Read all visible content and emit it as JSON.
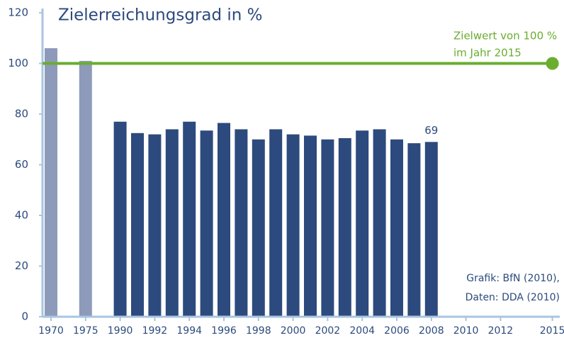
{
  "chart_data": {
    "type": "bar",
    "title": "Zielerreichungsgrad in %",
    "categories": [
      "1970",
      null,
      "1975",
      null,
      "1990",
      null,
      "1992",
      null,
      "1994",
      null,
      "1996",
      null,
      "1998",
      null,
      "2000",
      null,
      "2002",
      null,
      "2004",
      null,
      "2006",
      null,
      "2008",
      null,
      "2010",
      null,
      "2012",
      null,
      null,
      "2015"
    ],
    "values": [
      106,
      null,
      101,
      null,
      77,
      72.5,
      72,
      74,
      77,
      73.5,
      76.5,
      74,
      70,
      74,
      72,
      71.5,
      70,
      70.5,
      73.5,
      74,
      70,
      68.5,
      69,
      null,
      null,
      null,
      null,
      null,
      null,
      null
    ],
    "value_labels": [
      null,
      null,
      null,
      null,
      null,
      null,
      null,
      null,
      null,
      null,
      null,
      null,
      null,
      null,
      null,
      null,
      null,
      null,
      null,
      null,
      null,
      null,
      "69",
      null,
      null,
      null,
      null,
      null,
      null,
      null
    ],
    "colors": [
      "#8d9aba",
      null,
      "#8d9aba",
      null,
      "#2c4a7d",
      "#2c4a7d",
      "#2c4a7d",
      "#2c4a7d",
      "#2c4a7d",
      "#2c4a7d",
      "#2c4a7d",
      "#2c4a7d",
      "#2c4a7d",
      "#2c4a7d",
      "#2c4a7d",
      "#2c4a7d",
      "#2c4a7d",
      "#2c4a7d",
      "#2c4a7d",
      "#2c4a7d",
      "#2c4a7d",
      "#2c4a7d",
      "#2c4a7d",
      null,
      null,
      null,
      null,
      null,
      null,
      null
    ],
    "ylim": [
      0,
      120
    ],
    "yticks": [
      0,
      20,
      40,
      60,
      80,
      100,
      120
    ],
    "target": {
      "value": 100,
      "category": "2015",
      "color": "#6aad2f",
      "label": [
        "Zielwert von 100 %",
        "im Jahr 2015"
      ]
    },
    "source": [
      "Grafik: BfN (2010),",
      "Daten: DDA (2010)"
    ]
  }
}
